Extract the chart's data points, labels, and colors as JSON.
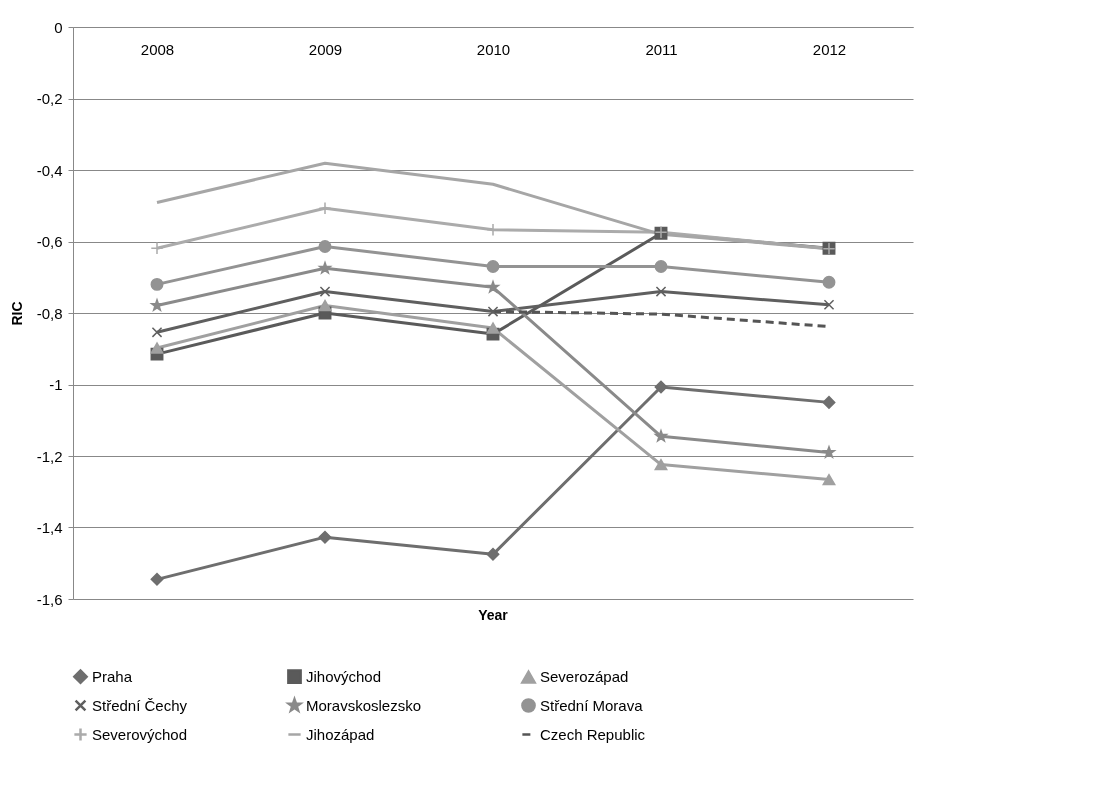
{
  "chart_data": {
    "type": "line",
    "xlabel": "Year",
    "ylabel": "RIC",
    "categories": [
      "2008",
      "2009",
      "2010",
      "2011",
      "2012"
    ],
    "ylim": [
      -1.6,
      0
    ],
    "yticks": [
      {
        "value": -1.6,
        "label": "-1,6"
      },
      {
        "value": -1.4,
        "label": "-1,4"
      },
      {
        "value": -1.2,
        "label": "-1,2"
      },
      -1,
      {
        "value": -0.8,
        "label": "-0,8"
      },
      {
        "value": -0.6,
        "label": "-0,6"
      },
      {
        "value": -0.4,
        "label": "-0,4"
      },
      {
        "value": -0.2,
        "label": "-0,2"
      },
      0
    ],
    "grid": "y",
    "legend": "bottom",
    "series": [
      {
        "name": "Praha",
        "color": "#6e6e6e",
        "marker": "diamond",
        "values": [
          -1.545,
          -1.427,
          -1.475,
          -1.007,
          -1.05
        ]
      },
      {
        "name": "Jihovýchod",
        "color": "#5a5a5a",
        "marker": "square",
        "values": [
          -0.915,
          -0.8,
          -0.859,
          -0.577,
          -0.619
        ]
      },
      {
        "name": "Severozápad",
        "color": "#a0a0a0",
        "marker": "triangle",
        "values": [
          -0.898,
          -0.779,
          -0.842,
          -1.224,
          -1.266
        ]
      },
      {
        "name": "Střední Čechy",
        "color": "#5f5f5f",
        "marker": "x",
        "values": [
          -0.854,
          -0.74,
          -0.796,
          -0.74,
          -0.777
        ]
      },
      {
        "name": "Moravskoslezsko",
        "color": "#8a8a8a",
        "marker": "star",
        "values": [
          -0.779,
          -0.675,
          -0.728,
          -1.145,
          -1.19
        ]
      },
      {
        "name": "Střední Morava",
        "color": "#939393",
        "marker": "circle",
        "values": [
          -0.72,
          -0.614,
          -0.67,
          -0.67,
          -0.714
        ]
      },
      {
        "name": "Severovýchod",
        "color": "#ababab",
        "marker": "cross",
        "values": [
          -0.619,
          -0.507,
          -0.567,
          -0.574,
          -0.62
        ]
      },
      {
        "name": "Jihozápad",
        "color": "#a6a6a6",
        "marker": "none",
        "values": [
          -0.491,
          -0.381,
          -0.44,
          -0.58,
          -0.62
        ]
      },
      {
        "name": "Czech Republic",
        "color": "#555555",
        "marker": "none",
        "line_style": "dashed",
        "values": [
          null,
          null,
          -0.796,
          -0.803,
          -0.838
        ]
      }
    ]
  }
}
